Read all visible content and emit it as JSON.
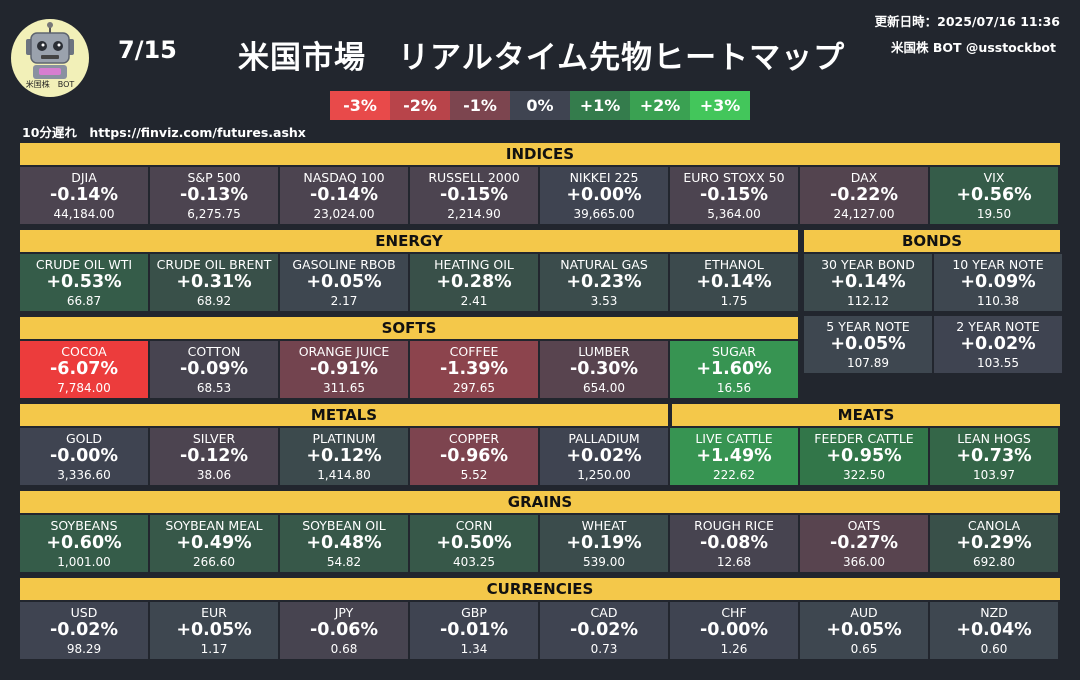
{
  "header": {
    "logo_text": "米国株　BOT",
    "date": "7/15",
    "title": "米国市場　リアルタイム先物ヒートマップ",
    "updated": "更新日時：2025/07/16 11:36",
    "account": "米国株 BOT @usstockbot",
    "delay": "10分遅れ　https://finviz.com/futures.ashx"
  },
  "legend": [
    {
      "label": "-3%",
      "color": "#e84a4a"
    },
    {
      "label": "-2%",
      "color": "#b8444a"
    },
    {
      "label": "-1%",
      "color": "#7c454f"
    },
    {
      "label": "0%",
      "color": "#3f4451"
    },
    {
      "label": "+1%",
      "color": "#347c4c"
    },
    {
      "label": "+2%",
      "color": "#3aa152"
    },
    {
      "label": "+3%",
      "color": "#43c65b"
    }
  ],
  "sections": {
    "indices": {
      "title": "INDICES",
      "items": [
        {
          "name": "DJIA",
          "change": "-0.14%",
          "price": "44,184.00",
          "color": "#4c4450"
        },
        {
          "name": "S&P 500",
          "change": "-0.13%",
          "price": "6,275.75",
          "color": "#4c4450"
        },
        {
          "name": "NASDAQ 100",
          "change": "-0.14%",
          "price": "23,024.00",
          "color": "#4c4450"
        },
        {
          "name": "RUSSELL 2000",
          "change": "-0.15%",
          "price": "2,214.90",
          "color": "#4c4450"
        },
        {
          "name": "NIKKEI 225",
          "change": "+0.00%",
          "price": "39,665.00",
          "color": "#3f4451"
        },
        {
          "name": "EURO STOXX 50",
          "change": "-0.15%",
          "price": "5,364.00",
          "color": "#4c4450"
        },
        {
          "name": "DAX",
          "change": "-0.22%",
          "price": "24,127.00",
          "color": "#53444f"
        },
        {
          "name": "VIX",
          "change": "+0.56%",
          "price": "19.50",
          "color": "#355c49"
        }
      ]
    },
    "energy": {
      "title": "ENERGY",
      "items": [
        {
          "name": "CRUDE OIL WTI",
          "change": "+0.53%",
          "price": "66.87",
          "color": "#355c49"
        },
        {
          "name": "CRUDE OIL BRENT",
          "change": "+0.31%",
          "price": "68.92",
          "color": "#395049"
        },
        {
          "name": "GASOLINE RBOB",
          "change": "+0.05%",
          "price": "2.17",
          "color": "#3e4750"
        },
        {
          "name": "HEATING OIL",
          "change": "+0.28%",
          "price": "2.41",
          "color": "#395049"
        },
        {
          "name": "NATURAL GAS",
          "change": "+0.23%",
          "price": "3.53",
          "color": "#3b4c4c"
        },
        {
          "name": "ETHANOL",
          "change": "+0.14%",
          "price": "1.75",
          "color": "#3c4a4d"
        }
      ]
    },
    "bonds": {
      "title": "BONDS",
      "items": [
        {
          "name": "30 YEAR BOND",
          "change": "+0.14%",
          "price": "112.12",
          "color": "#3c4a4d"
        },
        {
          "name": "10 YEAR NOTE",
          "change": "+0.09%",
          "price": "110.38",
          "color": "#3e4750"
        },
        {
          "name": "5 YEAR NOTE",
          "change": "+0.05%",
          "price": "107.89",
          "color": "#3e4750"
        },
        {
          "name": "2 YEAR NOTE",
          "change": "+0.02%",
          "price": "103.55",
          "color": "#3f4451"
        }
      ]
    },
    "softs": {
      "title": "SOFTS",
      "items": [
        {
          "name": "COCOA",
          "change": "-6.07%",
          "price": "7,784.00",
          "color": "#ec3c3c"
        },
        {
          "name": "COTTON",
          "change": "-0.09%",
          "price": "68.53",
          "color": "#474450"
        },
        {
          "name": "ORANGE JUICE",
          "change": "-0.91%",
          "price": "311.65",
          "color": "#73444f"
        },
        {
          "name": "COFFEE",
          "change": "-1.39%",
          "price": "297.65",
          "color": "#8c444d"
        },
        {
          "name": "LUMBER",
          "change": "-0.30%",
          "price": "654.00",
          "color": "#58444f"
        },
        {
          "name": "SUGAR",
          "change": "+1.60%",
          "price": "16.56",
          "color": "#379452"
        }
      ]
    },
    "metals": {
      "title": "METALS",
      "items": [
        {
          "name": "GOLD",
          "change": "-0.00%",
          "price": "3,336.60",
          "color": "#3f4451"
        },
        {
          "name": "SILVER",
          "change": "-0.12%",
          "price": "38.06",
          "color": "#4c4450"
        },
        {
          "name": "PLATINUM",
          "change": "+0.12%",
          "price": "1,414.80",
          "color": "#3c4a4d"
        },
        {
          "name": "COPPER",
          "change": "-0.96%",
          "price": "5.52",
          "color": "#7d444f"
        },
        {
          "name": "PALLADIUM",
          "change": "+0.02%",
          "price": "1,250.00",
          "color": "#3f4451"
        }
      ]
    },
    "meats": {
      "title": "MEATS",
      "items": [
        {
          "name": "LIVE CATTLE",
          "change": "+1.49%",
          "price": "222.62",
          "color": "#379452"
        },
        {
          "name": "FEEDER CATTLE",
          "change": "+0.95%",
          "price": "322.50",
          "color": "#327649"
        },
        {
          "name": "LEAN HOGS",
          "change": "+0.73%",
          "price": "103.97",
          "color": "#346648"
        }
      ]
    },
    "grains": {
      "title": "GRAINS",
      "items": [
        {
          "name": "SOYBEANS",
          "change": "+0.60%",
          "price": "1,001.00",
          "color": "#355c49"
        },
        {
          "name": "SOYBEAN MEAL",
          "change": "+0.49%",
          "price": "266.60",
          "color": "#375849"
        },
        {
          "name": "SOYBEAN OIL",
          "change": "+0.48%",
          "price": "54.82",
          "color": "#375849"
        },
        {
          "name": "CORN",
          "change": "+0.50%",
          "price": "403.25",
          "color": "#375849"
        },
        {
          "name": "WHEAT",
          "change": "+0.19%",
          "price": "539.00",
          "color": "#3b4c4c"
        },
        {
          "name": "ROUGH RICE",
          "change": "-0.08%",
          "price": "12.68",
          "color": "#474450"
        },
        {
          "name": "OATS",
          "change": "-0.27%",
          "price": "366.00",
          "color": "#58444f"
        },
        {
          "name": "CANOLA",
          "change": "+0.29%",
          "price": "692.80",
          "color": "#395049"
        }
      ]
    },
    "currencies": {
      "title": "CURRENCIES",
      "items": [
        {
          "name": "USD",
          "change": "-0.02%",
          "price": "98.29",
          "color": "#3f4451"
        },
        {
          "name": "EUR",
          "change": "+0.05%",
          "price": "1.17",
          "color": "#3e4750"
        },
        {
          "name": "JPY",
          "change": "-0.06%",
          "price": "0.68",
          "color": "#474450"
        },
        {
          "name": "GBP",
          "change": "-0.01%",
          "price": "1.34",
          "color": "#3f4451"
        },
        {
          "name": "CAD",
          "change": "-0.02%",
          "price": "0.73",
          "color": "#3f4451"
        },
        {
          "name": "CHF",
          "change": "-0.00%",
          "price": "1.26",
          "color": "#3f4451"
        },
        {
          "name": "AUD",
          "change": "+0.05%",
          "price": "0.65",
          "color": "#3e4750"
        },
        {
          "name": "NZD",
          "change": "+0.04%",
          "price": "0.60",
          "color": "#3e4750"
        }
      ]
    }
  }
}
